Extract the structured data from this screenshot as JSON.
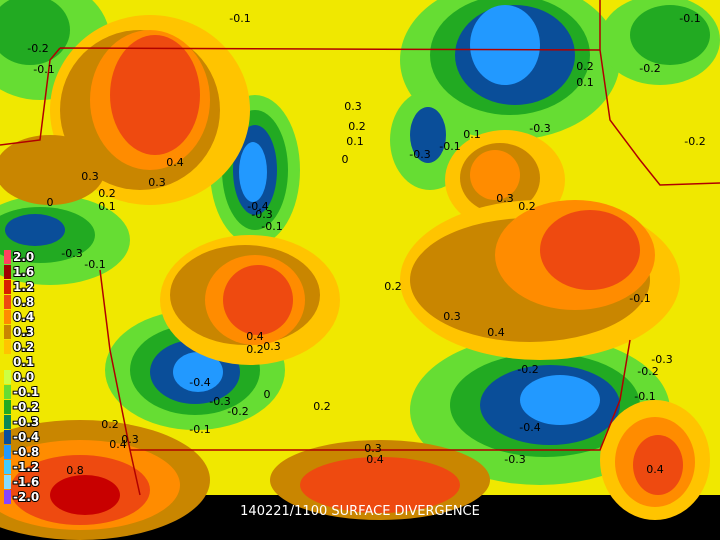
{
  "title": "140221/1100 SURFACE DIVERGENCE",
  "legend": [
    "2.0",
    "1.6",
    "1.2",
    "0.8",
    "0.4",
    "0.3",
    "0.2",
    "0.1",
    "0.0",
    "-0.1",
    "-0.2",
    "-0.3",
    "-0.4",
    "-0.8",
    "-1.2",
    "-1.6",
    "-2.0"
  ],
  "contour_labels": [
    "-0.1",
    "-0.2",
    "-0.1",
    "0.3",
    "0.2",
    "0.1",
    "0",
    "0.4",
    "0.3",
    "0.3",
    "0.2",
    "0.1",
    "0",
    "-0.3",
    "-0.1",
    "-0.3",
    "-0.1",
    "0.1",
    "-0.3",
    "0.3",
    "0.2",
    "0.2",
    "0.1",
    "-0.2",
    "-0.2",
    "-0.1",
    "0.2",
    "0.3",
    "0.4",
    "-0.1",
    "0.4",
    "0.2",
    "0.3",
    "-0.3",
    "-0.2",
    "-0.4",
    "-0.3",
    "-0.2",
    "0",
    "0.2",
    "-0.2",
    "-0.1",
    "-0.4",
    "0.2",
    "0.3",
    "0.4",
    "-0.1",
    "0.3",
    "0.4",
    "-0.3",
    "0.4",
    "0.8",
    "-0.4",
    "-0.3",
    "-0.1"
  ]
}
